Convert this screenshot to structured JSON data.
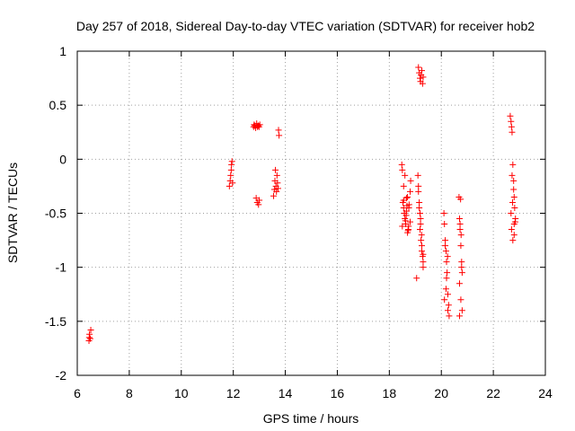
{
  "chart_data": {
    "type": "scatter",
    "title": "Day 257 of 2018, Sidereal Day-to-day VTEC variation (SDTVAR) for receiver hob2",
    "xlabel": "GPS time / hours",
    "ylabel": "SDTVAR / TECUs",
    "xlim": [
      6,
      24
    ],
    "ylim": [
      -2,
      1
    ],
    "xticks": [
      6,
      8,
      10,
      12,
      14,
      16,
      18,
      20,
      22,
      24
    ],
    "yticks": [
      -2,
      -1.5,
      -1,
      -0.5,
      0,
      0.5,
      1
    ],
    "xtick_labels": [
      "6",
      "8",
      "10",
      "12",
      "14",
      "16",
      "18",
      "20",
      "22",
      "24"
    ],
    "ytick_labels": [
      "-2",
      "-1.5",
      "-1",
      "-0.5",
      "0",
      "0.5",
      "1"
    ],
    "grid": true,
    "marker": "+",
    "color": "#ff0000",
    "series": [
      {
        "name": "SDTVAR",
        "x": [
          6.45,
          6.46,
          6.47,
          6.5,
          6.52,
          11.85,
          11.88,
          11.9,
          11.92,
          11.93,
          11.95,
          11.97,
          12.78,
          12.8,
          12.83,
          12.86,
          12.9,
          12.93,
          12.96,
          12.99,
          13.02,
          12.88,
          12.92,
          12.97,
          13.0,
          13.74,
          13.76,
          13.55,
          13.58,
          13.6,
          13.62,
          13.64,
          13.66,
          13.68,
          13.7,
          13.72,
          18.48,
          18.5,
          18.52,
          18.55,
          18.58,
          18.6,
          18.63,
          18.66,
          18.7,
          18.73,
          18.76,
          18.8,
          18.82,
          18.5,
          18.55,
          18.6,
          18.65,
          18.7,
          18.75,
          18.8,
          18.55,
          18.62,
          18.68,
          18.74,
          18.58,
          18.66,
          18.72,
          19.1,
          19.12,
          19.15,
          19.18,
          19.2,
          19.22,
          19.25,
          19.28,
          19.3,
          19.15,
          19.2,
          19.25,
          19.3,
          19.12,
          19.18,
          19.24,
          19.3,
          19.05,
          19.12,
          19.15,
          19.18,
          19.2,
          19.22,
          19.25,
          19.28,
          19.3,
          20.1,
          20.12,
          20.15,
          20.18,
          20.2,
          20.22,
          20.25,
          20.28,
          20.3,
          20.15,
          20.2,
          20.25,
          20.12,
          20.18,
          20.24,
          20.68,
          20.7,
          20.72,
          20.75,
          20.78,
          20.8,
          20.7,
          20.75,
          20.8,
          20.72,
          20.78,
          20.74,
          20.7,
          20.76,
          22.65,
          22.68,
          22.7,
          22.72,
          22.75,
          22.78,
          22.8,
          22.82,
          22.85,
          22.7,
          22.75,
          22.8,
          22.68,
          22.74,
          22.8,
          22.72,
          22.78,
          22.84
        ],
        "y": [
          -1.68,
          -1.65,
          -1.62,
          -1.66,
          -1.58,
          -0.25,
          -0.2,
          -0.15,
          -0.1,
          -0.05,
          -0.02,
          -0.22,
          0.3,
          0.32,
          0.31,
          0.29,
          0.33,
          0.3,
          0.31,
          0.3,
          0.32,
          -0.36,
          -0.4,
          -0.42,
          -0.38,
          0.27,
          0.22,
          -0.34,
          -0.28,
          -0.2,
          -0.1,
          -0.25,
          -0.3,
          -0.15,
          -0.22,
          -0.27,
          -0.05,
          -0.1,
          -0.4,
          -0.45,
          -0.5,
          -0.55,
          -0.6,
          -0.48,
          -0.35,
          -0.65,
          -0.42,
          -0.58,
          -0.2,
          -0.62,
          -0.38,
          -0.15,
          -0.52,
          -0.68,
          -0.45,
          -0.3,
          -0.25,
          -0.57,
          -0.43,
          -0.62,
          -0.5,
          -0.36,
          -0.66,
          -0.15,
          -0.25,
          -0.4,
          -0.5,
          -0.6,
          -0.75,
          -0.85,
          -0.9,
          -1.0,
          -0.45,
          -0.55,
          -0.8,
          -0.95,
          -0.3,
          -0.65,
          -0.7,
          -0.88,
          -1.1,
          0.85,
          0.8,
          0.75,
          0.72,
          0.78,
          0.82,
          0.7,
          0.76,
          -0.5,
          -0.6,
          -0.75,
          -0.85,
          -0.95,
          -1.05,
          -1.25,
          -1.35,
          -1.45,
          -0.8,
          -1.1,
          -1.4,
          -1.3,
          -1.2,
          -0.9,
          -0.35,
          -0.55,
          -0.65,
          -0.8,
          -0.95,
          -1.05,
          -1.15,
          -1.3,
          -1.4,
          -0.6,
          -1.0,
          -0.37,
          -1.45,
          -0.7,
          0.4,
          0.35,
          0.3,
          0.25,
          -0.05,
          -0.2,
          -0.35,
          -0.45,
          -0.55,
          -0.65,
          -0.75,
          -0.6,
          -0.5,
          -0.4,
          -0.7,
          -0.15,
          -0.28,
          -0.58
        ]
      }
    ]
  }
}
